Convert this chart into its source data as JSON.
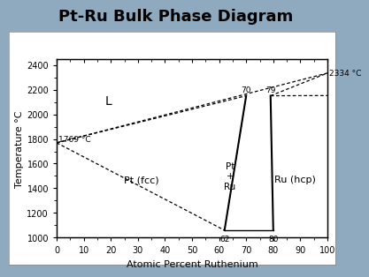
{
  "title": "Pt-Ru Bulk Phase Diagram",
  "title_fontsize": 13,
  "title_fontweight": "bold",
  "xlabel": "Atomic Percent Ruthenium",
  "ylabel": "Temperature °C",
  "xlim": [
    0,
    100
  ],
  "ylim": [
    1000,
    2450
  ],
  "yticks": [
    1000,
    1200,
    1400,
    1600,
    1800,
    2000,
    2200,
    2400
  ],
  "xticks": [
    0,
    10,
    20,
    30,
    40,
    50,
    60,
    70,
    80,
    90,
    100
  ],
  "bg_color": "#8faabf",
  "panel_color": "#ffffff",
  "annot_1769": "1769 °C",
  "annot_2334": "2334 °C",
  "annot_L": "L",
  "annot_Ptfcc": "Pt (fcc)",
  "annot_PtRu": "Pt\n+\nRu",
  "annot_Ruhcp": "Ru (hcp)",
  "annot_62": "62",
  "annot_70": "70",
  "annot_79": "79",
  "annot_80": "80"
}
